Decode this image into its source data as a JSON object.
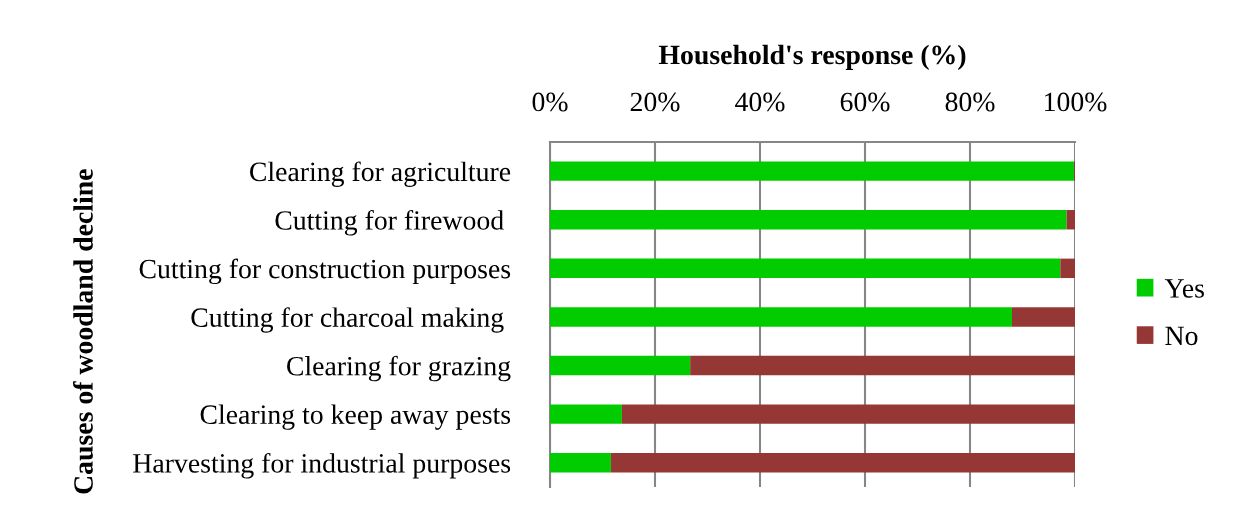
{
  "chart_data": {
    "type": "bar",
    "orientation": "horizontal",
    "stacked": true,
    "xlabel": "Household's response (%)",
    "ylabel": "Causes of woodland decline",
    "categories": [
      "Clearing for agriculture",
      "Cutting for firewood ",
      "Cutting for construction purposes",
      "Cutting for charcoal making ",
      "Clearing for grazing",
      "Clearing to keep away pests",
      "Harvesting for industrial purposes"
    ],
    "series": [
      {
        "name": "Yes",
        "color": "#00cc00",
        "values": [
          99.8,
          98.4,
          97.2,
          88.0,
          26.7,
          13.7,
          11.6
        ]
      },
      {
        "name": "No",
        "color": "#953735",
        "values": [
          0.2,
          1.6,
          2.8,
          12.0,
          73.3,
          86.3,
          88.4
        ]
      }
    ],
    "xlim": [
      0,
      100
    ],
    "xticks": [
      {
        "value": 0,
        "label": "0%"
      },
      {
        "value": 20,
        "label": "20%"
      },
      {
        "value": 40,
        "label": "40%"
      },
      {
        "value": 60,
        "label": "60%"
      },
      {
        "value": 80,
        "label": "80%"
      },
      {
        "value": 100,
        "label": "100%"
      }
    ],
    "grid": "x",
    "legend": "right"
  }
}
